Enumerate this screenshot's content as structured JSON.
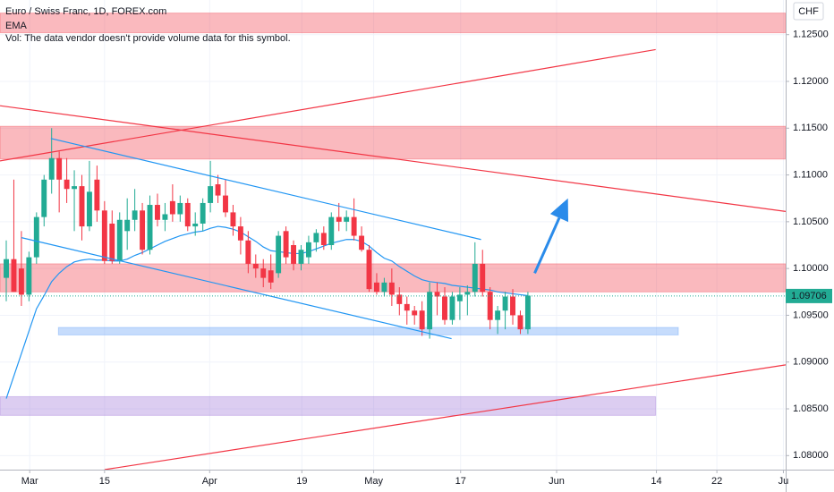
{
  "chart_data": {
    "type": "candlestick",
    "title": "Euro / Swiss Franc, 1D, FOREX.com",
    "indicator": "EMA",
    "volume_note": "Vol: The data vendor doesn't provide volume data for this symbol.",
    "currency": "CHF",
    "last_price": {
      "value": 1.09706,
      "label": "1.09706"
    },
    "up_color": "#22ab94",
    "down_color": "#f23645",
    "ema_color": "#2196f3",
    "open": [
      1.099,
      1.101,
      1.1,
      1.0972,
      1.1012,
      1.1055,
      1.1095,
      1.1118,
      1.1095,
      1.1085,
      1.1088,
      1.1045,
      1.1095,
      1.1062,
      1.1048,
      1.1008,
      1.104,
      1.1052,
      1.1062,
      1.102,
      1.1068,
      1.1052,
      1.1072,
      1.1058,
      1.107,
      1.1045,
      1.1048,
      1.107,
      1.109,
      1.1078,
      1.106,
      1.1045,
      1.103,
      1.1005,
      1.1,
      1.0998,
      1.0995,
      1.104,
      1.1025,
      1.1005,
      1.1012,
      1.1028,
      1.1038,
      1.1025,
      1.1055,
      1.105,
      1.1055,
      1.1035,
      1.102,
      1.0985,
      1.0975,
      1.0985,
      1.0972,
      1.0962,
      1.0955,
      1.0955,
      1.0935,
      1.0975,
      1.097,
      1.0945,
      1.0965,
      1.0972,
      1.0975,
      1.1005,
      1.0975,
      1.0945,
      1.0955,
      1.097,
      1.095,
      1.0935
    ],
    "high": [
      1.103,
      1.1095,
      1.104,
      1.1018,
      1.106,
      1.11,
      1.115,
      1.1125,
      1.1118,
      1.1105,
      1.11,
      1.1115,
      1.111,
      1.1072,
      1.1062,
      1.106,
      1.1075,
      1.1085,
      1.107,
      1.1078,
      1.108,
      1.107,
      1.109,
      1.1078,
      1.1075,
      1.106,
      1.1075,
      1.1115,
      1.11,
      1.1095,
      1.1068,
      1.1055,
      1.104,
      1.1015,
      1.101,
      1.1015,
      1.104,
      1.1045,
      1.103,
      1.1025,
      1.1035,
      1.1042,
      1.1045,
      1.106,
      1.107,
      1.1062,
      1.1075,
      1.1045,
      1.1025,
      1.0995,
      1.099,
      1.1,
      1.098,
      1.097,
      1.096,
      1.0965,
      1.0985,
      1.0985,
      1.098,
      1.0975,
      1.098,
      1.0982,
      1.1028,
      1.102,
      1.098,
      1.096,
      1.0975,
      1.0978,
      1.0955,
      1.0975
    ],
    "low": [
      1.0965,
      1.0975,
      1.096,
      1.0965,
      1.1005,
      1.1045,
      1.108,
      1.106,
      1.107,
      1.104,
      1.103,
      1.104,
      1.105,
      1.1005,
      1.1005,
      1.1005,
      1.102,
      1.104,
      1.1015,
      1.1015,
      1.1045,
      1.104,
      1.105,
      1.105,
      1.104,
      1.1035,
      1.104,
      1.106,
      1.107,
      1.1055,
      1.1035,
      1.1015,
      1.0995,
      1.099,
      1.098,
      1.0978,
      1.099,
      1.1005,
      1.0998,
      1.0998,
      1.1005,
      1.1018,
      1.102,
      1.102,
      1.104,
      1.104,
      1.103,
      1.1018,
      1.0975,
      1.0972,
      1.097,
      1.096,
      1.095,
      1.094,
      1.094,
      1.0928,
      1.0925,
      1.095,
      1.094,
      1.094,
      1.0945,
      1.095,
      1.097,
      1.097,
      1.0935,
      1.093,
      1.0935,
      1.094,
      1.093,
      1.093
    ],
    "close": [
      1.101,
      1.0975,
      1.0972,
      1.1012,
      1.1055,
      1.1095,
      1.1118,
      1.1095,
      1.1085,
      1.1088,
      1.1045,
      1.1082,
      1.1062,
      1.1008,
      1.1008,
      1.1052,
      1.1052,
      1.1062,
      1.102,
      1.1068,
      1.1052,
      1.1058,
      1.1058,
      1.107,
      1.1045,
      1.1048,
      1.107,
      1.1088,
      1.1078,
      1.106,
      1.1045,
      1.103,
      1.1005,
      1.1,
      1.099,
      1.0985,
      1.1035,
      1.1012,
      1.1005,
      1.102,
      1.1028,
      1.1038,
      1.1025,
      1.1055,
      1.105,
      1.1055,
      1.1035,
      1.102,
      1.0978,
      1.0975,
      1.0985,
      1.0972,
      1.0962,
      1.0955,
      1.095,
      1.0935,
      1.0975,
      1.097,
      1.0945,
      1.097,
      1.0972,
      1.0975,
      1.1005,
      1.0975,
      1.0945,
      1.0955,
      1.097,
      1.095,
      1.0935,
      1.0971
    ],
    "ema": [
      1.0861,
      1.0885,
      1.0909,
      1.0933,
      1.0957,
      1.0971,
      1.0986,
      1.0995,
      1.1002,
      1.1007,
      1.1009,
      1.101,
      1.1009,
      1.1009,
      1.1008,
      1.1008,
      1.101,
      1.1014,
      1.1017,
      1.1021,
      1.1025,
      1.1029,
      1.1032,
      1.1035,
      1.1037,
      1.1039,
      1.104,
      1.1043,
      1.1045,
      1.1044,
      1.1042,
      1.1039,
      1.1034,
      1.1029,
      1.1023,
      1.1019,
      1.1018,
      1.1017,
      1.1016,
      1.1016,
      1.1018,
      1.1021,
      1.1024,
      1.1027,
      1.1029,
      1.1031,
      1.1031,
      1.1029,
      1.1024,
      1.1017,
      1.1011,
      1.1008,
      1.1002,
      1.0997,
      1.0992,
      1.0988,
      1.0986,
      1.0985,
      1.0984,
      1.0982,
      1.0981,
      1.098,
      1.0979,
      1.0978,
      1.0977,
      1.0975,
      1.0974,
      1.0973,
      1.0972,
      1.0971
    ],
    "xlim": [
      -0.83,
      103.1
    ],
    "xticks": [
      {
        "value": 3.1,
        "label": "Mar"
      },
      {
        "value": 13.0,
        "label": "15"
      },
      {
        "value": 26.9,
        "label": "Apr"
      },
      {
        "value": 39.1,
        "label": "19"
      },
      {
        "value": 48.6,
        "label": "May"
      },
      {
        "value": 60.1,
        "label": "17"
      },
      {
        "value": 72.8,
        "label": "Jun"
      },
      {
        "value": 86.0,
        "label": "14"
      },
      {
        "value": 94.0,
        "label": "22"
      },
      {
        "value": 102.8,
        "label": "Ju"
      }
    ],
    "ylim": [
      1.0785,
      1.1287
    ],
    "yticks": [
      {
        "value": 1.125,
        "label": "1.12500"
      },
      {
        "value": 1.12,
        "label": "1.12000"
      },
      {
        "value": 1.115,
        "label": "1.11500"
      },
      {
        "value": 1.11,
        "label": "1.11000"
      },
      {
        "value": 1.105,
        "label": "1.10500"
      },
      {
        "value": 1.1,
        "label": "1.10000"
      },
      {
        "value": 1.095,
        "label": "1.09500"
      },
      {
        "value": 1.09,
        "label": "1.09000"
      },
      {
        "value": 1.085,
        "label": "1.08500"
      },
      {
        "value": 1.08,
        "label": "1.08000"
      }
    ],
    "zones": [
      {
        "x": [
          -0.83,
          103.1
        ],
        "y": [
          1.1273,
          1.1252
        ],
        "color": "#f23645"
      },
      {
        "x": [
          -0.83,
          103.1
        ],
        "y": [
          1.1152,
          1.1117
        ],
        "color": "#f23645"
      },
      {
        "x": [
          -0.83,
          103.1
        ],
        "y": [
          1.1005,
          1.0975
        ],
        "color": "#f23645"
      },
      {
        "x": [
          6.9,
          88.9
        ],
        "y": [
          1.0937,
          1.0929
        ],
        "color": "#5b9cf6"
      },
      {
        "x": [
          -0.83,
          85.9
        ],
        "y": [
          1.0863,
          1.0843
        ],
        "color": "#9c6fd6"
      }
    ],
    "lines": [
      {
        "x": [
          -0.83,
          85.9
        ],
        "y": [
          1.1115,
          1.1234
        ],
        "color": "#f23645"
      },
      {
        "x": [
          -0.83,
          103.1
        ],
        "y": [
          1.1174,
          1.1061
        ],
        "color": "#f23645"
      },
      {
        "x": [
          13.0,
          103.1
        ],
        "y": [
          1.0785,
          1.0897
        ],
        "color": "#f23645"
      },
      {
        "x": [
          5.9,
          62.8
        ],
        "y": [
          1.1139,
          1.1031
        ],
        "color": "#2196f3"
      },
      {
        "x": [
          2.0,
          58.9
        ],
        "y": [
          1.1033,
          1.0925
        ],
        "color": "#2196f3"
      }
    ],
    "arrow": {
      "x": [
        69.9,
        74.3
      ],
      "y": [
        1.0995,
        1.1075
      ],
      "color": "#2a8bea"
    }
  }
}
